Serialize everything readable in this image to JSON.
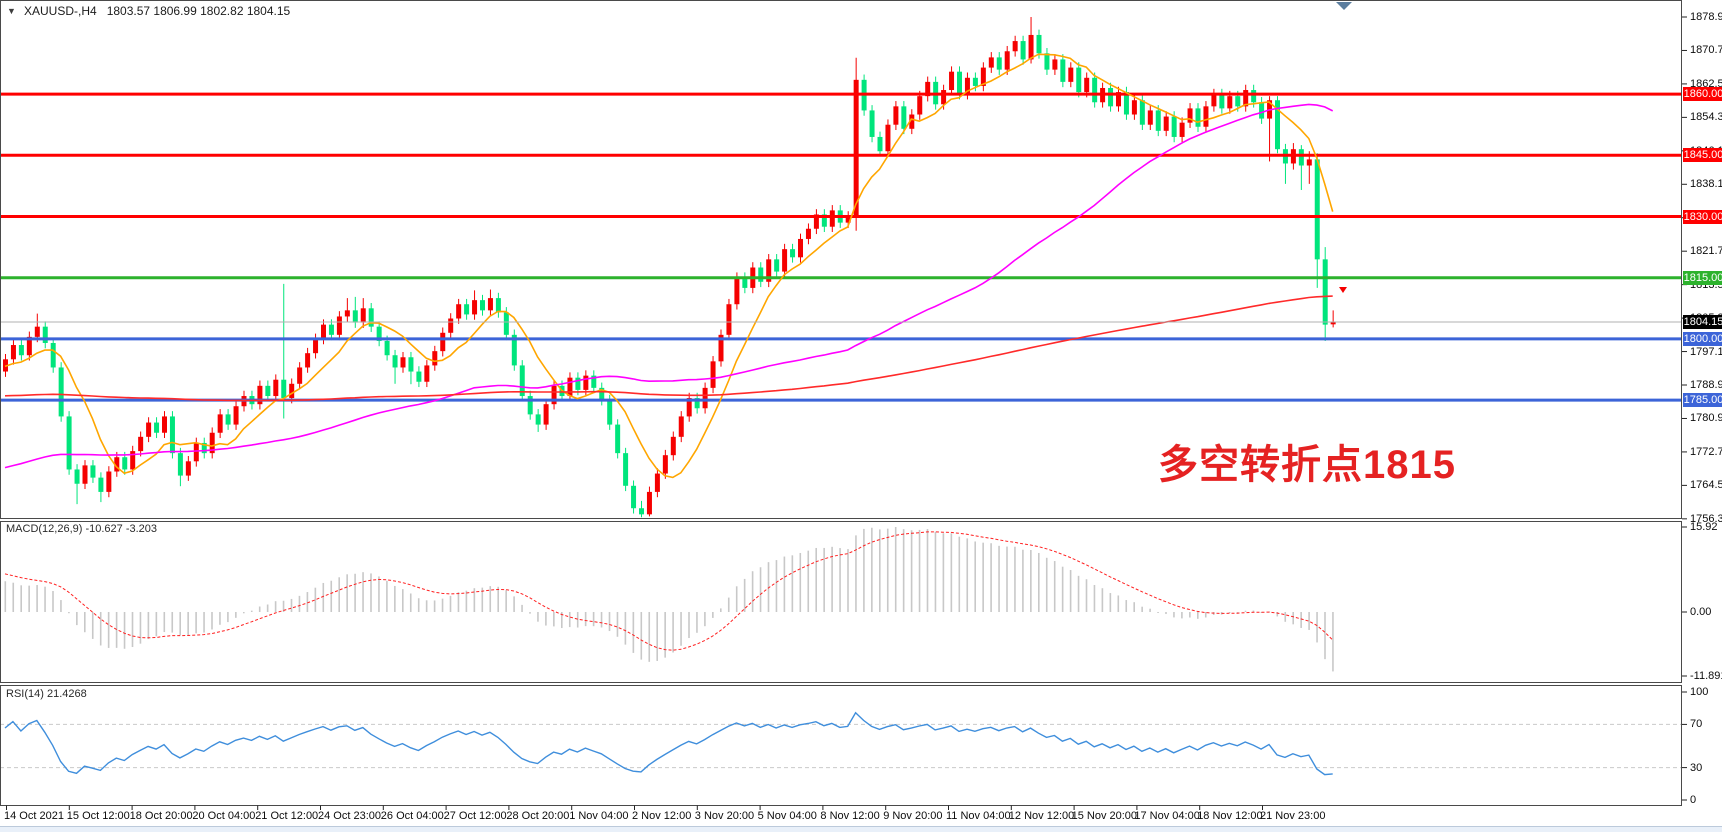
{
  "window": {
    "symbol": "XAUUSD-,H4",
    "ohlc_summary": "1803.57 1806.99 1802.82 1804.15"
  },
  "annotation": {
    "text": "多空转折点1815",
    "color": "#e52222"
  },
  "macd_panel": {
    "label": "MACD(12,26,9) -10.627 -3.203",
    "axis_ticks": [
      "15.92",
      "0.00",
      "-11.891"
    ]
  },
  "rsi_panel": {
    "label": "RSI(14) 21.4268",
    "axis_ticks": [
      "100",
      "70",
      "30",
      "0"
    ]
  },
  "price_axis": {
    "ticks": [
      "1878.90",
      "1870.70",
      "1862.50",
      "1854.30",
      "1846.10",
      "1838.10",
      "1829.90",
      "1821.70",
      "1813.50",
      "1805.30",
      "1797.10",
      "1788.90",
      "1780.90",
      "1772.70",
      "1764.50",
      "1756.30"
    ]
  },
  "levels": [
    {
      "label": "1860.00",
      "price": 1860.0,
      "color": "#ff0000"
    },
    {
      "label": "1845.00",
      "price": 1845.0,
      "color": "#ff0000"
    },
    {
      "label": "1830.00",
      "price": 1830.0,
      "color": "#ff0000"
    },
    {
      "label": "1815.00",
      "price": 1815.0,
      "color": "#2db22d"
    },
    {
      "label": "1800.00",
      "price": 1800.0,
      "color": "#3c64d8"
    },
    {
      "label": "1785.00",
      "price": 1785.0,
      "color": "#3c64d8"
    }
  ],
  "bid": {
    "label": "1804.15",
    "price": 1804.15,
    "badge_color": "#000000",
    "line_color": "#b0b0b0"
  },
  "time_axis": {
    "labels": [
      "14 Oct 2021",
      "15 Oct 12:00",
      "18 Oct 20:00",
      "20 Oct 04:00",
      "21 Oct 12:00",
      "24 Oct 23:00",
      "26 Oct 04:00",
      "27 Oct 12:00",
      "28 Oct 20:00",
      "1 Nov 04:00",
      "2 Nov 12:00",
      "3 Nov 20:00",
      "5 Nov 04:00",
      "8 Nov 12:00",
      "9 Nov 20:00",
      "11 Nov 04:00",
      "12 Nov 12:00",
      "15 Nov 20:00",
      "17 Nov 04:00",
      "18 Nov 12:00",
      "21 Nov 23:00"
    ]
  },
  "chart_data": {
    "type": "candlestick",
    "symbol": "XAUUSD-",
    "timeframe": "H4",
    "title": "XAUUSD-,H4 1803.57 1806.99 1802.82 1804.15",
    "y_axis_top": 1878.9,
    "y_axis_bottom": 1756.3,
    "y_tick_step": 8.2,
    "up_color": "#f50000",
    "down_color": "#00e57c",
    "note": "Chinese color convention: red body = close>open (bull), green body = close<open (bear)",
    "candles": [
      [
        1792.0,
        1796.3,
        1790.7,
        1795.0
      ],
      [
        1795.0,
        1799.8,
        1793.7,
        1798.5
      ],
      [
        1798.5,
        1799.8,
        1794.7,
        1796.0
      ],
      [
        1796.0,
        1801.8,
        1794.7,
        1800.5
      ],
      [
        1800.5,
        1806.2,
        1799.2,
        1803.0
      ],
      [
        1803.0,
        1804.3,
        1797.7,
        1799.0
      ],
      [
        1799.0,
        1800.3,
        1791.7,
        1793.0
      ],
      [
        1793.0,
        1794.3,
        1779.7,
        1781.0
      ],
      [
        1781.0,
        1782.3,
        1766.7,
        1768.0
      ],
      [
        1768.0,
        1769.3,
        1759.5,
        1764.5
      ],
      [
        1764.5,
        1770.3,
        1763.2,
        1769.0
      ],
      [
        1769.0,
        1770.3,
        1764.7,
        1766.0
      ],
      [
        1766.0,
        1767.3,
        1760.0,
        1762.5
      ],
      [
        1762.5,
        1768.8,
        1761.2,
        1767.5
      ],
      [
        1767.5,
        1772.3,
        1766.2,
        1771.0
      ],
      [
        1771.0,
        1772.3,
        1766.7,
        1768.0
      ],
      [
        1768.0,
        1773.8,
        1766.7,
        1772.5
      ],
      [
        1772.5,
        1777.3,
        1771.2,
        1776.0
      ],
      [
        1776.0,
        1780.8,
        1774.7,
        1779.5
      ],
      [
        1779.5,
        1780.8,
        1775.7,
        1777.0
      ],
      [
        1777.0,
        1782.3,
        1775.7,
        1781.0
      ],
      [
        1781.0,
        1782.3,
        1770.7,
        1772.0
      ],
      [
        1772.0,
        1773.3,
        1763.9,
        1766.5
      ],
      [
        1766.5,
        1771.3,
        1765.2,
        1770.0
      ],
      [
        1770.0,
        1775.8,
        1768.7,
        1774.5
      ],
      [
        1774.5,
        1775.8,
        1770.7,
        1772.0
      ],
      [
        1772.0,
        1778.3,
        1770.7,
        1777.0
      ],
      [
        1777.0,
        1782.8,
        1775.7,
        1781.5
      ],
      [
        1781.5,
        1782.8,
        1777.7,
        1779.0
      ],
      [
        1779.0,
        1784.8,
        1777.7,
        1783.5
      ],
      [
        1783.5,
        1787.3,
        1782.2,
        1786.0
      ],
      [
        1786.0,
        1787.3,
        1782.7,
        1784.0
      ],
      [
        1784.0,
        1789.8,
        1782.7,
        1788.5
      ],
      [
        1788.5,
        1789.8,
        1784.7,
        1786.0
      ],
      [
        1786.0,
        1791.3,
        1784.7,
        1790.0
      ],
      [
        1790.0,
        1813.5,
        1780.5,
        1785.5
      ],
      [
        1785.5,
        1790.3,
        1784.2,
        1789.0
      ],
      [
        1789.0,
        1794.3,
        1787.7,
        1793.0
      ],
      [
        1793.0,
        1797.8,
        1791.7,
        1796.5
      ],
      [
        1796.5,
        1801.3,
        1795.2,
        1800.0
      ],
      [
        1800.0,
        1804.8,
        1798.7,
        1803.5
      ],
      [
        1803.5,
        1804.8,
        1799.7,
        1801.0
      ],
      [
        1801.0,
        1806.8,
        1799.7,
        1805.5
      ],
      [
        1805.5,
        1810.0,
        1804.2,
        1807.0
      ],
      [
        1807.0,
        1810.3,
        1802.7,
        1804.0
      ],
      [
        1804.0,
        1810.0,
        1802.7,
        1807.5
      ],
      [
        1807.5,
        1808.8,
        1801.7,
        1803.0
      ],
      [
        1803.0,
        1804.3,
        1798.2,
        1799.5
      ],
      [
        1799.5,
        1800.8,
        1794.7,
        1796.0
      ],
      [
        1796.0,
        1797.3,
        1789.0,
        1793.0
      ],
      [
        1793.0,
        1796.8,
        1791.7,
        1795.5
      ],
      [
        1795.5,
        1796.8,
        1788.9,
        1792.0
      ],
      [
        1792.0,
        1793.3,
        1788.2,
        1789.5
      ],
      [
        1789.5,
        1794.8,
        1788.2,
        1793.5
      ],
      [
        1793.5,
        1798.3,
        1792.2,
        1797.0
      ],
      [
        1797.0,
        1802.8,
        1795.7,
        1801.5
      ],
      [
        1801.5,
        1806.3,
        1800.2,
        1805.0
      ],
      [
        1805.0,
        1809.8,
        1803.7,
        1808.5
      ],
      [
        1808.5,
        1809.8,
        1804.7,
        1806.0
      ],
      [
        1806.0,
        1811.9,
        1804.7,
        1809.5
      ],
      [
        1809.5,
        1810.8,
        1805.7,
        1807.0
      ],
      [
        1807.0,
        1812.1,
        1805.7,
        1810.0
      ],
      [
        1810.0,
        1811.3,
        1805.2,
        1806.5
      ],
      [
        1806.5,
        1807.8,
        1799.7,
        1801.0
      ],
      [
        1801.0,
        1802.3,
        1792.2,
        1793.5
      ],
      [
        1793.5,
        1794.8,
        1784.7,
        1786.0
      ],
      [
        1786.0,
        1787.3,
        1780.2,
        1781.5
      ],
      [
        1781.5,
        1782.8,
        1777.2,
        1779.0
      ],
      [
        1779.0,
        1785.3,
        1777.7,
        1784.0
      ],
      [
        1784.0,
        1789.8,
        1782.7,
        1788.5
      ],
      [
        1788.5,
        1789.8,
        1784.7,
        1786.0
      ],
      [
        1786.0,
        1791.8,
        1784.7,
        1790.5
      ],
      [
        1790.5,
        1791.8,
        1786.2,
        1787.5
      ],
      [
        1787.5,
        1792.3,
        1786.2,
        1791.0
      ],
      [
        1791.0,
        1792.3,
        1786.7,
        1788.0
      ],
      [
        1788.0,
        1789.3,
        1783.7,
        1785.0
      ],
      [
        1785.0,
        1786.3,
        1777.7,
        1779.0
      ],
      [
        1779.0,
        1780.3,
        1770.7,
        1772.0
      ],
      [
        1772.0,
        1773.3,
        1762.7,
        1764.0
      ],
      [
        1764.0,
        1765.3,
        1757.2,
        1758.5
      ],
      [
        1758.5,
        1760.3,
        1756.3,
        1757.0
      ],
      [
        1757.0,
        1763.8,
        1756.5,
        1762.5
      ],
      [
        1762.5,
        1768.3,
        1761.2,
        1767.0
      ],
      [
        1767.0,
        1772.8,
        1765.7,
        1771.5
      ],
      [
        1771.5,
        1777.3,
        1770.2,
        1776.0
      ],
      [
        1776.0,
        1782.3,
        1774.7,
        1781.0
      ],
      [
        1781.0,
        1786.8,
        1779.7,
        1785.5
      ],
      [
        1785.5,
        1786.8,
        1781.7,
        1783.0
      ],
      [
        1783.0,
        1789.3,
        1781.7,
        1788.0
      ],
      [
        1788.0,
        1795.8,
        1786.7,
        1794.5
      ],
      [
        1794.5,
        1802.3,
        1793.2,
        1801.0
      ],
      [
        1801.0,
        1809.8,
        1799.7,
        1808.5
      ],
      [
        1808.5,
        1816.3,
        1807.2,
        1815.0
      ],
      [
        1815.0,
        1816.3,
        1811.2,
        1812.5
      ],
      [
        1812.5,
        1818.8,
        1811.2,
        1817.5
      ],
      [
        1817.5,
        1818.8,
        1812.7,
        1814.0
      ],
      [
        1814.0,
        1820.8,
        1812.7,
        1819.5
      ],
      [
        1819.5,
        1820.8,
        1815.2,
        1816.5
      ],
      [
        1816.5,
        1823.3,
        1815.2,
        1822.0
      ],
      [
        1822.0,
        1823.3,
        1818.7,
        1820.0
      ],
      [
        1820.0,
        1825.8,
        1818.7,
        1824.5
      ],
      [
        1824.5,
        1828.3,
        1823.2,
        1827.0
      ],
      [
        1827.0,
        1831.8,
        1825.7,
        1830.5
      ],
      [
        1830.5,
        1831.8,
        1826.2,
        1827.5
      ],
      [
        1827.5,
        1832.8,
        1826.2,
        1831.5
      ],
      [
        1831.5,
        1832.8,
        1827.2,
        1828.5
      ],
      [
        1828.5,
        1831.3,
        1827.2,
        1830.0
      ],
      [
        1830.0,
        1868.9,
        1826.5,
        1863.5
      ],
      [
        1863.5,
        1864.8,
        1854.7,
        1856.0
      ],
      [
        1856.0,
        1857.3,
        1848.2,
        1849.5
      ],
      [
        1849.5,
        1850.8,
        1844.7,
        1846.0
      ],
      [
        1846.0,
        1853.8,
        1844.7,
        1852.5
      ],
      [
        1852.5,
        1858.3,
        1851.2,
        1857.0
      ],
      [
        1857.0,
        1858.3,
        1850.2,
        1851.5
      ],
      [
        1851.5,
        1856.3,
        1850.2,
        1855.0
      ],
      [
        1855.0,
        1860.8,
        1853.7,
        1859.5
      ],
      [
        1859.5,
        1864.3,
        1858.2,
        1863.0
      ],
      [
        1863.0,
        1864.3,
        1856.2,
        1857.5
      ],
      [
        1857.5,
        1862.3,
        1856.2,
        1861.0
      ],
      [
        1861.0,
        1866.8,
        1859.7,
        1865.5
      ],
      [
        1865.5,
        1866.8,
        1858.7,
        1860.0
      ],
      [
        1860.0,
        1865.3,
        1858.7,
        1864.0
      ],
      [
        1864.0,
        1865.3,
        1860.7,
        1862.0
      ],
      [
        1862.0,
        1867.8,
        1860.7,
        1866.5
      ],
      [
        1866.5,
        1870.3,
        1865.2,
        1869.0
      ],
      [
        1869.0,
        1870.3,
        1864.7,
        1866.0
      ],
      [
        1866.0,
        1871.8,
        1864.7,
        1870.5
      ],
      [
        1870.5,
        1874.3,
        1869.2,
        1873.0
      ],
      [
        1873.0,
        1874.3,
        1867.2,
        1868.5
      ],
      [
        1868.5,
        1878.9,
        1867.5,
        1874.5
      ],
      [
        1874.5,
        1875.8,
        1868.7,
        1870.0
      ],
      [
        1870.0,
        1871.3,
        1864.7,
        1866.0
      ],
      [
        1866.0,
        1869.8,
        1864.7,
        1868.5
      ],
      [
        1868.5,
        1869.8,
        1861.7,
        1863.0
      ],
      [
        1863.0,
        1867.8,
        1861.7,
        1866.5
      ],
      [
        1866.5,
        1867.8,
        1859.2,
        1860.5
      ],
      [
        1860.5,
        1865.3,
        1859.2,
        1864.0
      ],
      [
        1864.0,
        1865.3,
        1856.7,
        1858.0
      ],
      [
        1858.0,
        1862.8,
        1856.7,
        1861.5
      ],
      [
        1861.5,
        1862.8,
        1855.7,
        1857.0
      ],
      [
        1857.0,
        1861.8,
        1855.7,
        1860.5
      ],
      [
        1860.5,
        1861.8,
        1853.7,
        1855.0
      ],
      [
        1855.0,
        1859.8,
        1853.7,
        1858.5
      ],
      [
        1858.5,
        1859.8,
        1851.2,
        1852.5
      ],
      [
        1852.5,
        1857.3,
        1851.2,
        1856.0
      ],
      [
        1856.0,
        1857.3,
        1849.7,
        1851.0
      ],
      [
        1851.0,
        1855.8,
        1849.7,
        1854.5
      ],
      [
        1854.5,
        1855.8,
        1848.2,
        1849.5
      ],
      [
        1849.5,
        1854.3,
        1848.2,
        1853.0
      ],
      [
        1853.0,
        1857.8,
        1851.7,
        1856.5
      ],
      [
        1856.5,
        1857.8,
        1850.7,
        1852.0
      ],
      [
        1852.0,
        1858.3,
        1850.7,
        1857.0
      ],
      [
        1857.0,
        1861.3,
        1855.7,
        1860.0
      ],
      [
        1860.0,
        1861.3,
        1855.2,
        1856.5
      ],
      [
        1856.5,
        1860.8,
        1855.2,
        1859.5
      ],
      [
        1859.5,
        1860.8,
        1855.7,
        1857.0
      ],
      [
        1857.0,
        1862.3,
        1855.7,
        1861.0
      ],
      [
        1861.0,
        1862.3,
        1856.7,
        1858.0
      ],
      [
        1858.0,
        1859.3,
        1852.7,
        1854.0
      ],
      [
        1854.0,
        1859.5,
        1843.5,
        1858.5
      ],
      [
        1858.5,
        1859.5,
        1845.5,
        1846.5
      ],
      [
        1846.5,
        1847.8,
        1838.0,
        1843.0
      ],
      [
        1843.0,
        1848.0,
        1841.5,
        1846.5
      ],
      [
        1846.5,
        1847.5,
        1836.5,
        1842.5
      ],
      [
        1842.5,
        1846.0,
        1838.0,
        1844.0
      ],
      [
        1844.0,
        1845.5,
        1812.5,
        1819.5
      ],
      [
        1819.5,
        1822.5,
        1799.5,
        1803.5
      ],
      [
        1803.57,
        1806.99,
        1802.82,
        1804.15
      ]
    ],
    "moving_averages": [
      {
        "name": "ma-fast",
        "period": 8,
        "color": "#ffa600",
        "seed": 1793
      },
      {
        "name": "ma-mid",
        "period": 60,
        "color": "#ff00ff",
        "seed": 1768
      },
      {
        "name": "ma-slow",
        "period": 200,
        "color": "#ff2a2a",
        "seed": 1786
      }
    ],
    "indicators": {
      "macd": {
        "fast": 12,
        "slow": 26,
        "signal": 9,
        "current_macd": -10.627,
        "current_signal": -3.203,
        "hist_color": "#c8c8c8",
        "signal_color": "#ff2020",
        "axis_max": 15.92,
        "axis_min": -11.891
      },
      "rsi": {
        "period": 14,
        "current": 21.4268,
        "line_color": "#3f8edc",
        "levels": [
          70,
          30
        ],
        "axis": [
          100,
          70,
          30,
          0
        ]
      }
    }
  }
}
